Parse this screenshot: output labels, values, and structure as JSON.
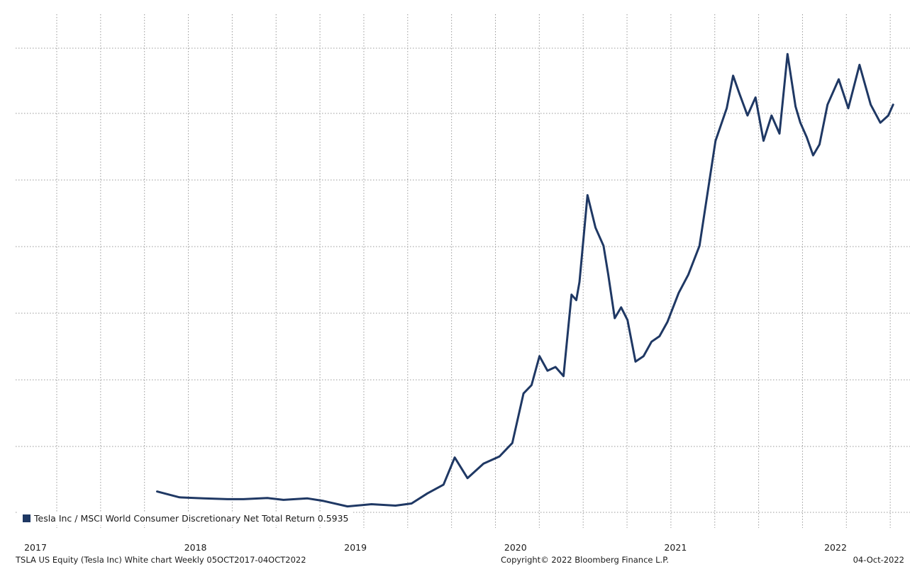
{
  "chart_data": {
    "type": "line",
    "legend": {
      "label": "Tesla Inc / MSCI World Consumer Discretionary Net Total Return 0.5935",
      "position": "bottom-left"
    },
    "series": [
      {
        "name": "Tesla Inc / MSCI World Consumer Discretionary Net Total Return",
        "color": "#1f3864",
        "last_value": 0.5935,
        "x": [
          2017.76,
          2017.9,
          2018.05,
          2018.2,
          2018.3,
          2018.45,
          2018.55,
          2018.7,
          2018.8,
          2018.95,
          2019.1,
          2019.25,
          2019.35,
          2019.45,
          2019.55,
          2019.62,
          2019.7,
          2019.8,
          2019.9,
          2019.98,
          2020.05,
          2020.1,
          2020.15,
          2020.2,
          2020.25,
          2020.3,
          2020.35,
          2020.38,
          2020.4,
          2020.45,
          2020.5,
          2020.55,
          2020.58,
          2020.62,
          2020.66,
          2020.7,
          2020.75,
          2020.8,
          2020.85,
          2020.9,
          2020.95,
          2021.02,
          2021.08,
          2021.15,
          2021.25,
          2021.32,
          2021.36,
          2021.4,
          2021.45,
          2021.5,
          2021.55,
          2021.6,
          2021.65,
          2021.7,
          2021.75,
          2021.78,
          2021.82,
          2021.86,
          2021.9,
          2021.95,
          2022.02,
          2022.08,
          2022.15,
          2022.22,
          2022.28,
          2022.33,
          2022.36
        ],
        "values": [
          0.081,
          0.065,
          0.062,
          0.06,
          0.06,
          0.063,
          0.058,
          0.062,
          0.055,
          0.04,
          0.046,
          0.042,
          0.048,
          0.076,
          0.1,
          0.175,
          0.118,
          0.158,
          0.178,
          0.215,
          0.352,
          0.375,
          0.455,
          0.415,
          0.425,
          0.4,
          0.625,
          0.61,
          0.66,
          0.9,
          0.81,
          0.76,
          0.68,
          0.56,
          0.59,
          0.555,
          0.44,
          0.455,
          0.495,
          0.51,
          0.55,
          0.63,
          0.68,
          0.76,
          1.05,
          1.14,
          1.23,
          1.18,
          1.12,
          1.17,
          1.05,
          1.12,
          1.07,
          1.29,
          1.145,
          1.1,
          1.06,
          1.01,
          1.04,
          1.15,
          1.22,
          1.14,
          1.26,
          1.15,
          1.1,
          1.12,
          1.15
        ]
      }
    ],
    "x_axis": {
      "ticks": [
        2017,
        2018,
        2019,
        2020,
        2021,
        2022
      ],
      "tick_labels": [
        "2017",
        "2018",
        "2019",
        "2020",
        "2021",
        "2022"
      ]
    },
    "y_axis": {
      "visible_labels": false,
      "ylim": [
        0.0,
        1.4
      ]
    },
    "grid": true,
    "grid_style": "dotted"
  },
  "footer": {
    "left": "TSLA US Equity (Tesla Inc) White chart  Weekly 05OCT2017-04OCT2022",
    "center": "Copyright© 2022 Bloomberg Finance L.P.",
    "right": "04-Oct-2022"
  }
}
